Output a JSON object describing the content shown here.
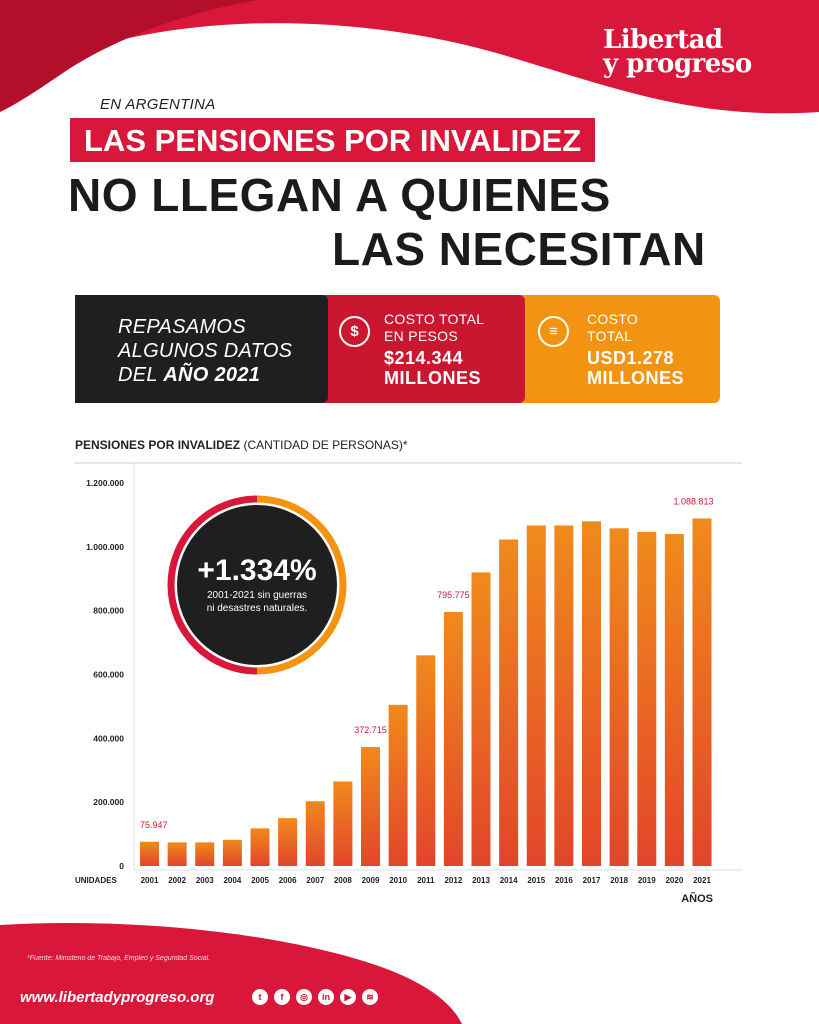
{
  "brand": {
    "logo_line1": "Libertad",
    "logo_line2": "y progreso",
    "url": "www.libertadyprogreso.org",
    "red": "#d8173a",
    "orange": "#f39312",
    "dark": "#1f1f1f"
  },
  "header": {
    "kicker": "EN ARGENTINA",
    "tagline": "LAS PENSIONES POR INVALIDEZ",
    "headline_line1": "NO LLEGAN A QUIENES",
    "headline_line2": "LAS NECESITAN"
  },
  "summary": {
    "recap_line1": "REPASAMOS",
    "recap_line2": "ALGUNOS DATOS",
    "recap_line3_prefix": "DEL ",
    "recap_line3_bold": "AÑO 2021",
    "pesos": {
      "label_line1": "COSTO TOTAL",
      "label_line2": "EN PESOS",
      "value_line1": "$214.344",
      "value_line2": "MILLONES",
      "icon": "dollar-coin-icon"
    },
    "usd": {
      "label_line1": "COSTO",
      "label_line2": "TOTAL",
      "value_line1": "USD1.278",
      "value_line2": "MILLONES",
      "icon": "coins-stack-icon"
    }
  },
  "chart_title": {
    "bold": "PENSIONES POR INVALIDEZ",
    "rest": " (CANTIDAD DE PERSONAS)*"
  },
  "callout": {
    "value": "+1.334%",
    "line1": "2001-2021 sin guerras",
    "line2": "ni desastres naturales."
  },
  "chart_data": {
    "type": "bar",
    "xlabel": "AÑOS",
    "ylabel": "UNIDADES",
    "ylim": [
      0,
      1200000
    ],
    "yticks": [
      0,
      200000,
      400000,
      600000,
      800000,
      1000000,
      1200000
    ],
    "ytick_labels": [
      "0",
      "200.000",
      "400.000",
      "600.000",
      "800.000",
      "1.000.000",
      "1.200.000"
    ],
    "categories": [
      "2001",
      "2002",
      "2003",
      "2004",
      "2005",
      "2006",
      "2007",
      "2008",
      "2009",
      "2010",
      "2011",
      "2012",
      "2013",
      "2014",
      "2015",
      "2016",
      "2017",
      "2018",
      "2019",
      "2020",
      "2021"
    ],
    "values": [
      75947,
      74000,
      74000,
      82000,
      118000,
      150000,
      203000,
      265000,
      372715,
      505000,
      660000,
      795775,
      920000,
      1023000,
      1067000,
      1067000,
      1080000,
      1058000,
      1047000,
      1040000,
      1088813
    ],
    "data_labels": [
      {
        "index": 0,
        "text": "75.947"
      },
      {
        "index": 8,
        "text": "372.715"
      },
      {
        "index": 11,
        "text": "795.775"
      },
      {
        "index": 20,
        "text": "1.088.813"
      }
    ],
    "grid": false,
    "bar_color_top": "#f08a1c",
    "bar_color_bottom": "#e2452a",
    "label_color": "#c8172f"
  },
  "footer": {
    "source": "*Fuente: Ministerio de Trabajo, Empleo y Seguridad Social.",
    "social": [
      {
        "icon": "twitter-icon",
        "glyph": "t"
      },
      {
        "icon": "facebook-icon",
        "glyph": "f"
      },
      {
        "icon": "instagram-icon",
        "glyph": "◎"
      },
      {
        "icon": "linkedin-icon",
        "glyph": "in"
      },
      {
        "icon": "youtube-icon",
        "glyph": "▶"
      },
      {
        "icon": "spotify-icon",
        "glyph": "≋"
      }
    ]
  }
}
